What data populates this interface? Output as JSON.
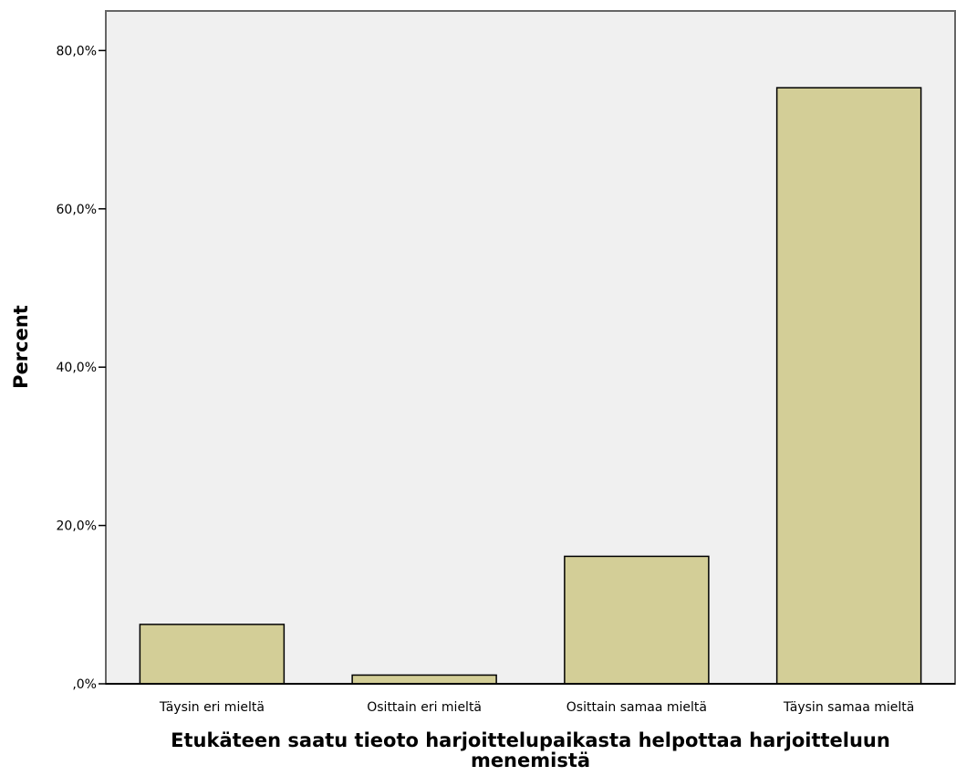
{
  "chart_data": {
    "type": "bar",
    "categories": [
      "Täysin eri mieltä",
      "Osittain eri mieltä",
      "Osittain samaa mieltä",
      "Täysin samaa mieltä"
    ],
    "values": [
      7.5,
      1.1,
      16.1,
      75.3
    ],
    "title": "",
    "xlabel_lines": [
      "Etukäteen saatu tieoto harjoittelupaikasta helpottaa harjoitteluun",
      "menemistä"
    ],
    "ylabel": "Percent",
    "ylim": [
      0,
      85
    ],
    "yticks": [
      0,
      20,
      40,
      60,
      80
    ],
    "ytick_labels": [
      ",0%",
      "20,0%",
      "40,0%",
      "60,0%",
      "80,0%"
    ],
    "grid": false,
    "colors": {
      "bar_fill": "#d3ce97",
      "bar_stroke": "#000000",
      "plot_background": "#f0f0f0"
    }
  }
}
